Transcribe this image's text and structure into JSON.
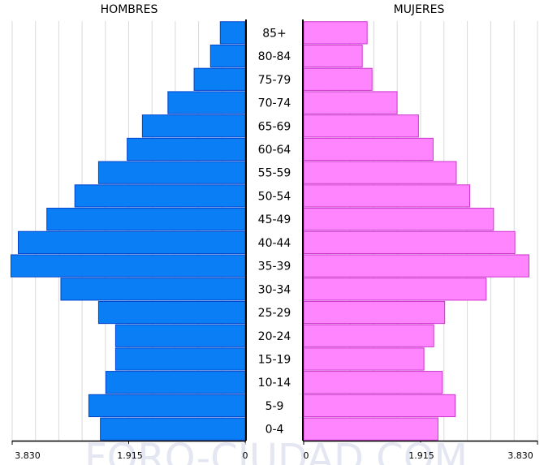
{
  "chart_data": {
    "type": "bar",
    "orientation": "horizontal",
    "layout": "population-pyramid",
    "categories": [
      "85+",
      "80-84",
      "75-79",
      "70-74",
      "65-69",
      "60-64",
      "55-59",
      "50-54",
      "45-49",
      "40-44",
      "35-39",
      "30-34",
      "25-29",
      "20-24",
      "15-19",
      "10-14",
      "5-9",
      "0-4"
    ],
    "series": [
      {
        "name": "HOMBRES",
        "side": "left",
        "color": "#0a7ef5",
        "values": [
          410,
          570,
          840,
          1270,
          1690,
          1940,
          2410,
          2800,
          3260,
          3730,
          3850,
          3030,
          2410,
          2130,
          2130,
          2290,
          2570,
          2380
        ]
      },
      {
        "name": "MUJERES",
        "side": "right",
        "color": "#ff85ff",
        "values": [
          1040,
          960,
          1120,
          1530,
          1880,
          2120,
          2500,
          2720,
          3110,
          3460,
          3690,
          2990,
          2310,
          2130,
          1970,
          2270,
          2480,
          2200
        ]
      }
    ],
    "axis": {
      "max": 3830,
      "tick_labels_left": [
        "3.830",
        "1.915",
        "0"
      ],
      "tick_labels_right": [
        "0",
        "1.915",
        "3.830"
      ],
      "grid": true
    },
    "watermark": "FORO-CIUDAD.COM"
  }
}
